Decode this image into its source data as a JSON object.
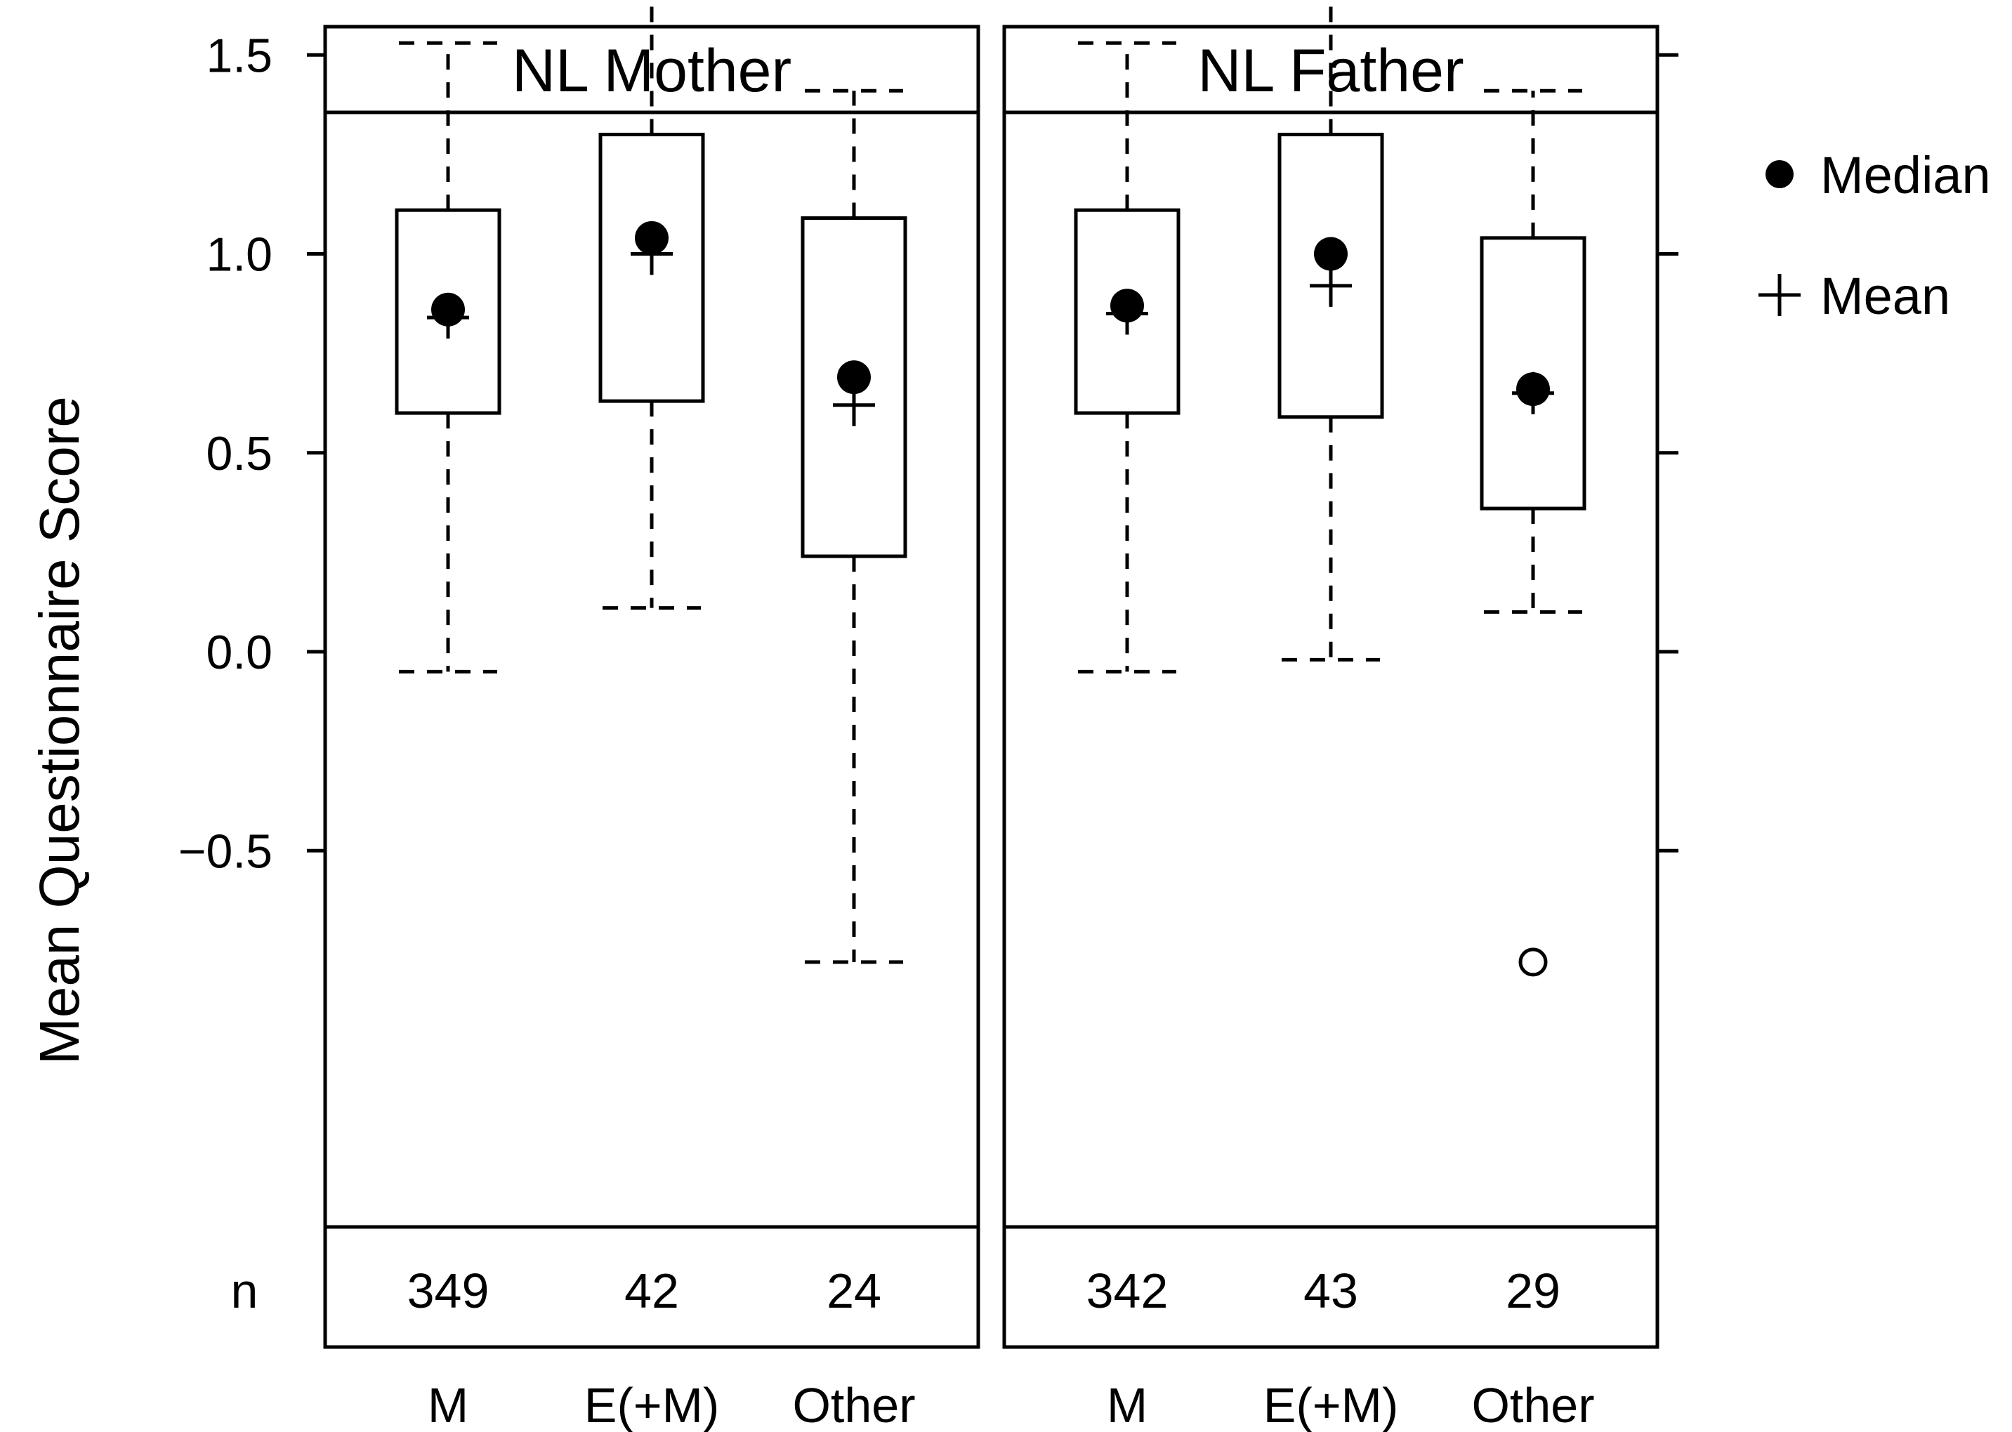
{
  "chart_data": {
    "type": "boxplot",
    "ylabel": "Mean Questionnaire Score",
    "ylim": [
      -0.85,
      1.85
    ],
    "yticks": [
      -0.5,
      0.0,
      0.5,
      1.0,
      1.5
    ],
    "ytick_labels": [
      "−0.5",
      "0.0",
      "0.5",
      "1.0",
      "1.5"
    ],
    "count_row_label": "n",
    "categories": [
      "M",
      "E(+M)",
      "Other"
    ],
    "legend": {
      "position": "top-right",
      "entries": [
        {
          "symbol": "filled-circle",
          "label": "Median"
        },
        {
          "symbol": "plus",
          "label": "Mean"
        }
      ]
    },
    "panels": [
      {
        "title": "NL Mother",
        "boxes": [
          {
            "category": "M",
            "whisker_low": -0.05,
            "q1": 0.6,
            "median": 0.86,
            "q3": 1.11,
            "whisker_high": 1.53,
            "mean": 0.84,
            "n": "349",
            "outliers": []
          },
          {
            "category": "E(+M)",
            "whisker_low": 0.11,
            "q1": 0.63,
            "median": 1.04,
            "q3": 1.3,
            "whisker_high": 1.69,
            "mean": 1.0,
            "n": "42",
            "outliers": []
          },
          {
            "category": "Other",
            "whisker_low": -0.78,
            "q1": 0.24,
            "median": 0.69,
            "q3": 1.09,
            "whisker_high": 1.41,
            "mean": 0.62,
            "n": "24",
            "outliers": []
          }
        ]
      },
      {
        "title": "NL Father",
        "boxes": [
          {
            "category": "M",
            "whisker_low": -0.05,
            "q1": 0.6,
            "median": 0.87,
            "q3": 1.11,
            "whisker_high": 1.53,
            "mean": 0.85,
            "n": "342",
            "outliers": []
          },
          {
            "category": "E(+M)",
            "whisker_low": -0.02,
            "q1": 0.59,
            "median": 1.0,
            "q3": 1.3,
            "whisker_high": 1.69,
            "mean": 0.92,
            "n": "43",
            "outliers": []
          },
          {
            "category": "Other",
            "whisker_low": 0.1,
            "q1": 0.36,
            "median": 0.66,
            "q3": 1.04,
            "whisker_high": 1.41,
            "mean": 0.65,
            "n": "29",
            "outliers": [
              -0.78
            ]
          }
        ]
      }
    ]
  }
}
